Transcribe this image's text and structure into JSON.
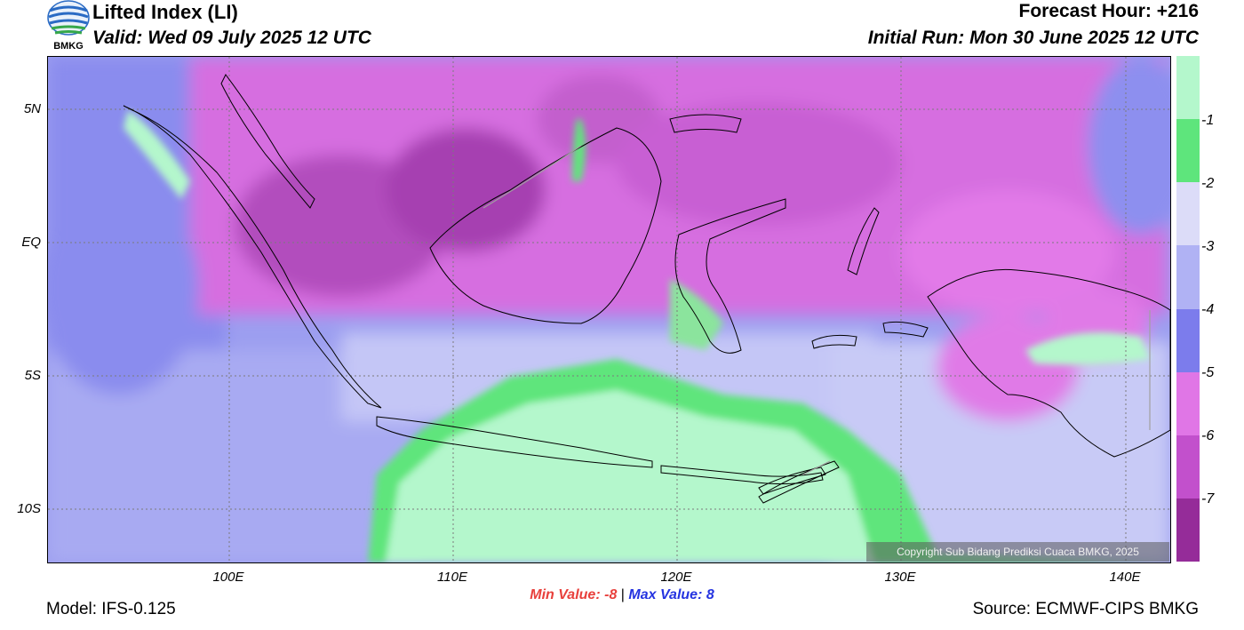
{
  "header": {
    "title": "Lifted Index (LI)",
    "valid": "Valid: Wed 09 July 2025 12 UTC",
    "forecast_hour": "Forecast Hour: +216",
    "initial_run": "Initial Run: Mon 30 June 2025 12 UTC",
    "logo_text": "BMKG"
  },
  "axes": {
    "lat_labels": [
      "5N",
      "EQ",
      "5S",
      "10S"
    ],
    "lon_labels": [
      "100E",
      "110E",
      "120E",
      "130E",
      "140E"
    ]
  },
  "colorbar": {
    "labels": [
      "-1",
      "-2",
      "-3",
      "-4",
      "-5",
      "-6",
      "-7"
    ],
    "colors": [
      "#b4f7cc",
      "#5ee57c",
      "#dcdcf8",
      "#b0b2f4",
      "#7c7cec",
      "#e076e6",
      "#c250cc",
      "#952c99"
    ]
  },
  "footer": {
    "min_label": "Min Value:",
    "min_value": "-8",
    "separator": "|",
    "max_label": "Max Value:",
    "max_value": "8",
    "model": "Model: IFS-0.125",
    "source": "Source: ECMWF-CIPS BMKG",
    "copyright": "Copyright Sub Bidang Prediksi Cuaca BMKG, 2025"
  }
}
